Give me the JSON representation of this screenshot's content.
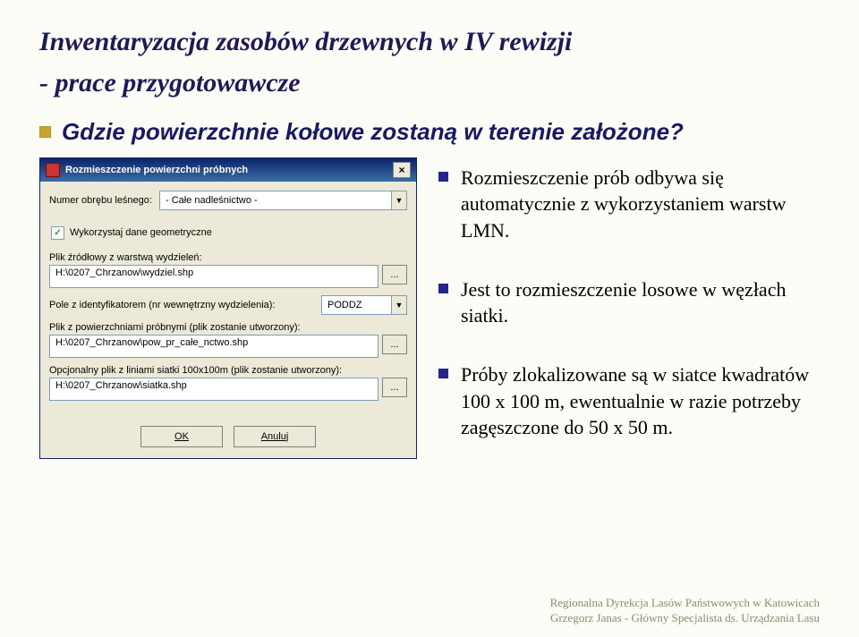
{
  "title": "Inwentaryzacja zasobów drzewnych w IV rewizji",
  "subtitle": "- prace przygotowawcze",
  "lead": "Gdzie powierzchnie kołowe zostaną w terenie założone?",
  "dialog": {
    "title": "Rozmieszczenie powierzchni próbnych",
    "close": "×",
    "field_label": "Numer obrębu leśnego:",
    "field_value": "- Całe nadleśnictwo -",
    "checkbox": "Wykorzystaj dane geometryczne",
    "check_mark": "✓",
    "src_label": "Plik źródłowy z warstwą wydzieleń:",
    "src_value": "H:\\0207_Chrzanow\\wydziel.shp",
    "ident_label": "Pole z identyfikatorem (nr wewnętrzny wydzielenia):",
    "ident_value": "PODDZ",
    "surf_label": "Plik z powierzchniami próbnymi (plik zostanie utworzony):",
    "surf_value": "H:\\0207_Chrzanow\\pow_pr_całe_nctwo.shp",
    "grid_label": "Opcjonalny plik z liniami siatki 100x100m (plik zostanie utworzony):",
    "grid_value": "H:\\0207_Chrzanow\\siatka.shp",
    "browse": "...",
    "ok": "OK",
    "cancel": "Anuluj"
  },
  "points": [
    "Rozmieszczenie prób odbywa się automatycznie z wykorzystaniem warstw LMN.",
    "Jest to rozmieszczenie losowe w węzłach siatki.",
    "Próby zlokalizowane są w siatce kwadratów 100 x 100 m, ewentualnie w razie potrzeby zagęszczone do 50 x 50 m."
  ],
  "footer1": "Regionalna Dyrekcja Lasów Państwowych w Katowicach",
  "footer2": "Grzegorz Janas - Główny Specjalista ds. Urządzania Lasu"
}
